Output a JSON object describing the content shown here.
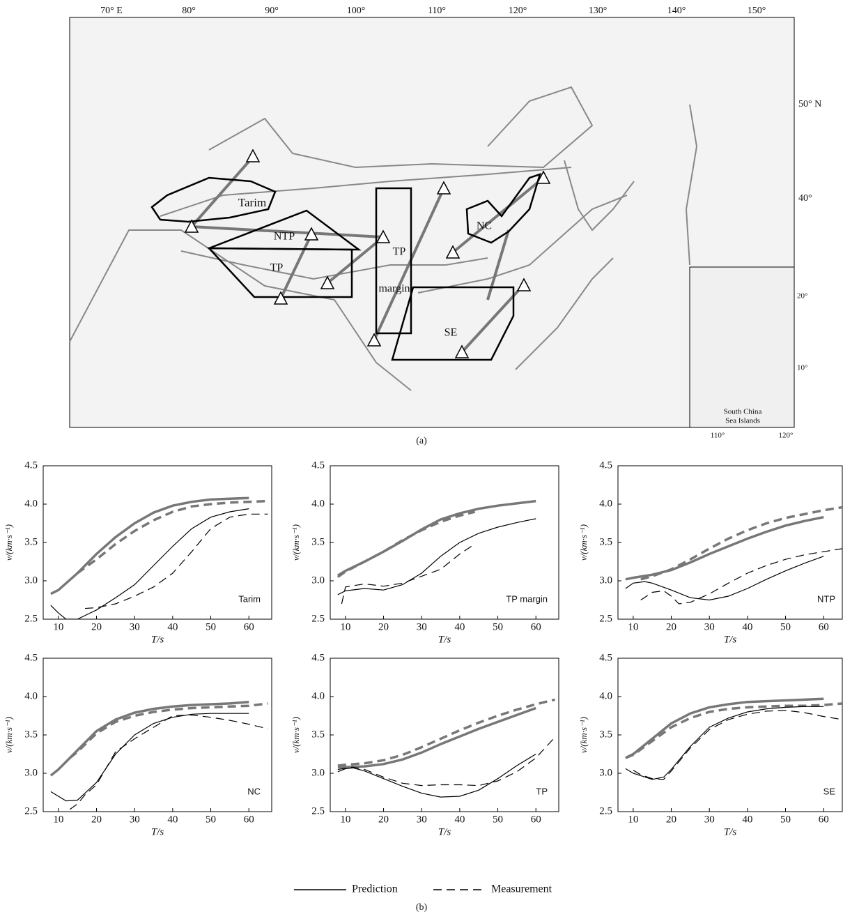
{
  "map": {
    "lon_labels": [
      "70° E",
      "80°",
      "90°",
      "100°",
      "110°",
      "120°",
      "130°",
      "140°",
      "150°"
    ],
    "lat_labels": [
      "50° N",
      "40°"
    ],
    "regions": [
      "Tarim",
      "NTP",
      "TP",
      "TP",
      "margin",
      "NC",
      "SE"
    ],
    "inset": {
      "title": [
        "South China",
        "Sea Islands"
      ],
      "lat_labels": [
        "20°",
        "10°"
      ],
      "lon_labels": [
        "110°",
        "120°"
      ]
    },
    "caption": "(a)"
  },
  "legend": [
    {
      "label": "Prediction",
      "dash": "solid"
    },
    {
      "label": "Measurement",
      "dash": "dashed"
    }
  ],
  "caption_b": "(b)",
  "chart_data": [
    {
      "type": "line",
      "title": "Tarim",
      "xlabel": "T/s",
      "ylabel": "v/(km·s⁻¹)",
      "xlim": [
        6,
        66
      ],
      "ylim": [
        2.5,
        4.5
      ],
      "xticks": [
        10,
        20,
        30,
        40,
        50,
        60
      ],
      "yticks": [
        2.5,
        {
          "value": 3,
          "label": "3.0"
        },
        3.5,
        {
          "value": 4,
          "label": "4.0"
        },
        4.5
      ],
      "series": [
        {
          "color": "#777777",
          "width": 3.5,
          "dash": "solid",
          "x": [
            8,
            10,
            15,
            20,
            25,
            30,
            35,
            40,
            45,
            50,
            55,
            60
          ],
          "values": [
            2.83,
            2.88,
            3.1,
            3.35,
            3.57,
            3.75,
            3.89,
            3.98,
            4.03,
            4.06,
            4.07,
            4.08
          ]
        },
        {
          "color": "#777777",
          "width": 3.5,
          "dash": "dashed",
          "x": [
            15,
            20,
            25,
            30,
            35,
            40,
            45,
            50,
            55,
            60,
            65
          ],
          "values": [
            3.1,
            3.28,
            3.48,
            3.65,
            3.79,
            3.9,
            3.97,
            4.0,
            4.02,
            4.03,
            4.04
          ]
        },
        {
          "color": "#000000",
          "width": 1.2,
          "dash": "solid",
          "x": [
            8,
            10,
            12,
            15,
            20,
            25,
            30,
            35,
            40,
            45,
            50,
            55,
            60
          ],
          "values": [
            2.68,
            2.58,
            2.5,
            2.5,
            2.62,
            2.78,
            2.95,
            3.2,
            3.45,
            3.68,
            3.83,
            3.9,
            3.94
          ]
        },
        {
          "color": "#000000",
          "width": 1.2,
          "dash": "dashed",
          "x": [
            17,
            20,
            25,
            30,
            35,
            40,
            45,
            50,
            55,
            60,
            65
          ],
          "values": [
            2.64,
            2.65,
            2.7,
            2.8,
            2.92,
            3.1,
            3.38,
            3.68,
            3.83,
            3.87,
            3.87
          ]
        }
      ]
    },
    {
      "type": "line",
      "title": "TP margin",
      "xlabel": "T/s",
      "ylabel": "v/(km·s⁻¹)",
      "xlim": [
        6,
        66
      ],
      "ylim": [
        2.5,
        4.5
      ],
      "xticks": [
        10,
        20,
        30,
        40,
        50,
        60
      ],
      "yticks": [
        2.5,
        {
          "value": 3,
          "label": "3.0"
        },
        3.5,
        {
          "value": 4,
          "label": "4.0"
        },
        4.5
      ],
      "series": [
        {
          "color": "#777777",
          "width": 3.5,
          "dash": "solid",
          "x": [
            8,
            10,
            15,
            20,
            25,
            30,
            35,
            40,
            45,
            50,
            55,
            60
          ],
          "values": [
            3.07,
            3.13,
            3.25,
            3.38,
            3.52,
            3.67,
            3.8,
            3.88,
            3.94,
            3.98,
            4.01,
            4.04
          ]
        },
        {
          "color": "#777777",
          "width": 3.5,
          "dash": "dashed",
          "x": [
            8,
            10,
            15,
            20,
            25,
            30,
            35,
            40,
            44
          ],
          "values": [
            3.05,
            3.12,
            3.25,
            3.38,
            3.53,
            3.66,
            3.77,
            3.85,
            3.9
          ]
        },
        {
          "color": "#000000",
          "width": 1.2,
          "dash": "solid",
          "x": [
            8,
            10,
            15,
            20,
            25,
            30,
            35,
            40,
            45,
            50,
            55,
            60
          ],
          "values": [
            2.82,
            2.87,
            2.9,
            2.88,
            2.95,
            3.1,
            3.32,
            3.5,
            3.62,
            3.7,
            3.76,
            3.81
          ]
        },
        {
          "color": "#000000",
          "width": 1.2,
          "dash": "dashed",
          "x": [
            9,
            10,
            15,
            20,
            25,
            30,
            35,
            40,
            44
          ],
          "values": [
            2.7,
            2.92,
            2.96,
            2.93,
            2.97,
            3.06,
            3.15,
            3.35,
            3.48
          ]
        }
      ]
    },
    {
      "type": "line",
      "title": "NTP",
      "xlabel": "T/s",
      "ylabel": "v/(km·s⁻¹)",
      "xlim": [
        6,
        66
      ],
      "ylim": [
        2.5,
        4.5
      ],
      "xticks": [
        10,
        20,
        30,
        40,
        50,
        60
      ],
      "yticks": [
        2.5,
        {
          "value": 3,
          "label": "3.0"
        },
        3.5,
        {
          "value": 4,
          "label": "4.0"
        },
        4.5
      ],
      "series": [
        {
          "color": "#777777",
          "width": 3.5,
          "dash": "solid",
          "x": [
            8,
            10,
            15,
            20,
            25,
            30,
            35,
            40,
            45,
            50,
            55,
            60
          ],
          "values": [
            3.02,
            3.04,
            3.08,
            3.14,
            3.24,
            3.35,
            3.45,
            3.55,
            3.64,
            3.72,
            3.78,
            3.83
          ]
        },
        {
          "color": "#777777",
          "width": 3.5,
          "dash": "dashed",
          "x": [
            12,
            15,
            20,
            25,
            30,
            35,
            40,
            45,
            50,
            55,
            60,
            65
          ],
          "values": [
            3.02,
            3.06,
            3.15,
            3.28,
            3.42,
            3.55,
            3.66,
            3.75,
            3.82,
            3.87,
            3.92,
            3.96
          ]
        },
        {
          "color": "#000000",
          "width": 1.2,
          "dash": "solid",
          "x": [
            8,
            10,
            13,
            15,
            20,
            25,
            30,
            35,
            40,
            45,
            50,
            55,
            60
          ],
          "values": [
            2.9,
            2.97,
            2.99,
            2.97,
            2.88,
            2.78,
            2.75,
            2.8,
            2.9,
            3.02,
            3.13,
            3.23,
            3.32
          ]
        },
        {
          "color": "#000000",
          "width": 1.2,
          "dash": "dashed",
          "x": [
            12,
            15,
            18,
            20,
            22,
            25,
            30,
            35,
            40,
            45,
            50,
            55,
            60,
            65
          ],
          "values": [
            2.75,
            2.85,
            2.87,
            2.8,
            2.7,
            2.72,
            2.83,
            2.97,
            3.1,
            3.2,
            3.28,
            3.34,
            3.38,
            3.42
          ]
        }
      ]
    },
    {
      "type": "line",
      "title": "NC",
      "xlabel": "T/s",
      "ylabel": "v/(km·s⁻¹)",
      "xlim": [
        6,
        66
      ],
      "ylim": [
        2.5,
        4.5
      ],
      "xticks": [
        10,
        20,
        30,
        40,
        50,
        60
      ],
      "yticks": [
        2.5,
        {
          "value": 3,
          "label": "3.0"
        },
        3.5,
        {
          "value": 4,
          "label": "4.0"
        },
        4.5
      ],
      "series": [
        {
          "color": "#777777",
          "width": 3.5,
          "dash": "solid",
          "x": [
            8,
            10,
            15,
            20,
            25,
            30,
            35,
            40,
            45,
            50,
            55,
            60
          ],
          "values": [
            2.97,
            3.05,
            3.3,
            3.55,
            3.7,
            3.79,
            3.84,
            3.87,
            3.89,
            3.9,
            3.91,
            3.93
          ]
        },
        {
          "color": "#777777",
          "width": 3.5,
          "dash": "dashed",
          "x": [
            13,
            15,
            20,
            25,
            30,
            35,
            40,
            45,
            50,
            55,
            60,
            65
          ],
          "values": [
            3.2,
            3.28,
            3.52,
            3.67,
            3.75,
            3.8,
            3.83,
            3.85,
            3.86,
            3.87,
            3.88,
            3.91
          ]
        },
        {
          "color": "#000000",
          "width": 1.2,
          "dash": "solid",
          "x": [
            8,
            10,
            12,
            15,
            20,
            25,
            30,
            35,
            40,
            45,
            50,
            55,
            60
          ],
          "values": [
            2.76,
            2.7,
            2.64,
            2.65,
            2.88,
            3.25,
            3.5,
            3.65,
            3.73,
            3.77,
            3.78,
            3.78,
            3.78
          ]
        },
        {
          "color": "#000000",
          "width": 1.2,
          "dash": "dashed",
          "x": [
            13,
            15,
            17,
            20,
            25,
            30,
            35,
            40,
            45,
            50,
            55,
            60,
            65
          ],
          "values": [
            2.53,
            2.6,
            2.72,
            2.85,
            3.28,
            3.45,
            3.6,
            3.75,
            3.76,
            3.73,
            3.69,
            3.64,
            3.58
          ]
        }
      ]
    },
    {
      "type": "line",
      "title": "TP",
      "xlabel": "T/s",
      "ylabel": "v/(km·s⁻¹)",
      "xlim": [
        6,
        66
      ],
      "ylim": [
        2.5,
        4.5
      ],
      "xticks": [
        10,
        20,
        30,
        40,
        50,
        60
      ],
      "yticks": [
        2.5,
        {
          "value": 3,
          "label": "3.0"
        },
        3.5,
        {
          "value": 4,
          "label": "4.0"
        },
        4.5
      ],
      "series": [
        {
          "color": "#777777",
          "width": 3.5,
          "dash": "solid",
          "x": [
            8,
            10,
            15,
            20,
            25,
            30,
            35,
            40,
            45,
            50,
            55,
            60
          ],
          "values": [
            3.08,
            3.08,
            3.09,
            3.12,
            3.18,
            3.27,
            3.38,
            3.48,
            3.58,
            3.67,
            3.76,
            3.85
          ]
        },
        {
          "color": "#777777",
          "width": 3.5,
          "dash": "dashed",
          "x": [
            8,
            10,
            15,
            20,
            25,
            30,
            35,
            40,
            45,
            50,
            55,
            60,
            65
          ],
          "values": [
            3.1,
            3.11,
            3.13,
            3.17,
            3.24,
            3.34,
            3.45,
            3.56,
            3.66,
            3.75,
            3.83,
            3.9,
            3.96
          ]
        },
        {
          "color": "#000000",
          "width": 1.2,
          "dash": "solid",
          "x": [
            8,
            10,
            12,
            15,
            20,
            25,
            30,
            35,
            40,
            45,
            50,
            55,
            60
          ],
          "values": [
            3.02,
            3.06,
            3.07,
            3.03,
            2.93,
            2.83,
            2.74,
            2.69,
            2.7,
            2.78,
            2.93,
            3.1,
            3.25
          ]
        },
        {
          "color": "#000000",
          "width": 1.2,
          "dash": "dashed",
          "x": [
            8,
            12,
            15,
            20,
            25,
            30,
            35,
            40,
            45,
            50,
            55,
            60,
            65
          ],
          "values": [
            3.05,
            3.08,
            3.05,
            2.95,
            2.87,
            2.84,
            2.85,
            2.85,
            2.84,
            2.9,
            3.02,
            3.2,
            3.47
          ]
        }
      ]
    },
    {
      "type": "line",
      "title": "SE",
      "xlabel": "T/s",
      "ylabel": "v/(km·s⁻¹)",
      "xlim": [
        6,
        66
      ],
      "ylim": [
        2.5,
        4.5
      ],
      "xticks": [
        10,
        20,
        30,
        40,
        50,
        60
      ],
      "yticks": [
        2.5,
        {
          "value": 3,
          "label": "3.0"
        },
        3.5,
        {
          "value": 4,
          "label": "4.0"
        },
        4.5
      ],
      "series": [
        {
          "color": "#777777",
          "width": 3.5,
          "dash": "solid",
          "x": [
            8,
            10,
            15,
            20,
            25,
            30,
            35,
            40,
            45,
            50,
            55,
            60
          ],
          "values": [
            3.2,
            3.25,
            3.45,
            3.65,
            3.78,
            3.86,
            3.9,
            3.93,
            3.94,
            3.95,
            3.96,
            3.97
          ]
        },
        {
          "color": "#777777",
          "width": 3.5,
          "dash": "dashed",
          "x": [
            8,
            10,
            15,
            20,
            25,
            30,
            35,
            40,
            45,
            50,
            55,
            60,
            65
          ],
          "values": [
            3.2,
            3.24,
            3.42,
            3.6,
            3.72,
            3.8,
            3.84,
            3.86,
            3.87,
            3.88,
            3.88,
            3.89,
            3.91
          ]
        },
        {
          "color": "#000000",
          "width": 1.2,
          "dash": "solid",
          "x": [
            8,
            10,
            15,
            18,
            20,
            25,
            30,
            35,
            40,
            45,
            50,
            55,
            60
          ],
          "values": [
            3.06,
            3.0,
            2.92,
            2.95,
            3.05,
            3.35,
            3.6,
            3.72,
            3.8,
            3.84,
            3.86,
            3.87,
            3.87
          ]
        },
        {
          "color": "#000000",
          "width": 1.2,
          "dash": "dashed",
          "x": [
            10,
            12,
            15,
            18,
            20,
            25,
            30,
            35,
            40,
            45,
            50,
            55,
            60,
            65
          ],
          "values": [
            3.04,
            2.98,
            2.93,
            2.92,
            3.03,
            3.33,
            3.57,
            3.7,
            3.77,
            3.81,
            3.82,
            3.79,
            3.74,
            3.7
          ]
        }
      ]
    }
  ]
}
